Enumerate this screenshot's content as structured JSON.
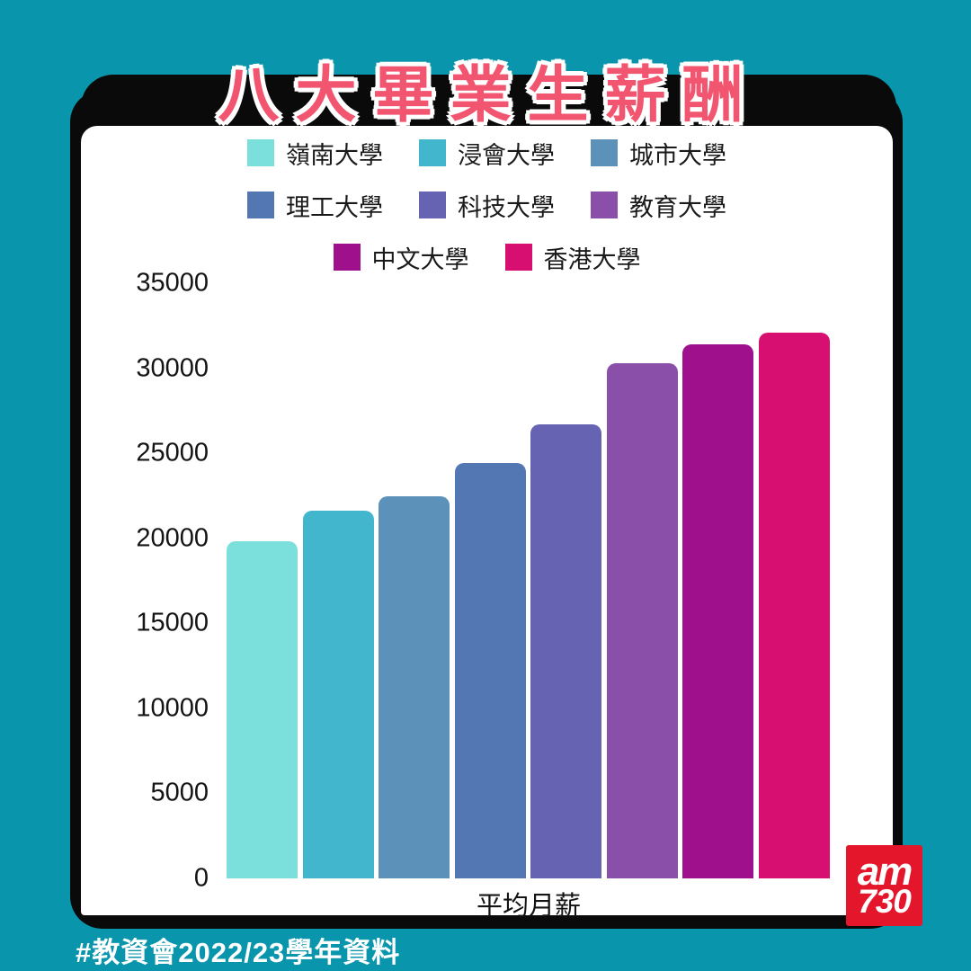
{
  "title": "八大畢業生薪酬",
  "colors": {
    "background": "#0996AC",
    "frame": "#0A0A0A",
    "card": "#FFFFFF",
    "title_text": "#F2556F",
    "title_outline": "#FFFFFF",
    "axis_text": "#141414",
    "footer_text": "#FFFFFF",
    "logo_red": "#E4162B"
  },
  "chart_data": {
    "type": "bar",
    "title": "八大畢業生薪酬",
    "xlabel": "平均月薪",
    "ylabel": "",
    "ylim": [
      0,
      35000
    ],
    "yticks": [
      0,
      5000,
      10000,
      15000,
      20000,
      25000,
      30000,
      35000
    ],
    "grid": false,
    "legend_position": "top",
    "legend_rows": [
      [
        0,
        1,
        2
      ],
      [
        3,
        4,
        5
      ],
      [
        6,
        7
      ]
    ],
    "categories": [
      "嶺南大學",
      "浸會大學",
      "城市大學",
      "理工大學",
      "科技大學",
      "教育大學",
      "中文大學",
      "香港大學"
    ],
    "values": [
      19800,
      21650,
      22450,
      24450,
      26700,
      30300,
      31400,
      32100
    ],
    "bar_colors": [
      "#7BDFDB",
      "#41B6CD",
      "#5C92BA",
      "#5377B3",
      "#6663B2",
      "#8A4FA8",
      "#9E108C",
      "#D60F70"
    ]
  },
  "footer": {
    "hashtag": "#教資會2022/23學年資料"
  },
  "logo": {
    "line1": "am",
    "line2": "730"
  }
}
